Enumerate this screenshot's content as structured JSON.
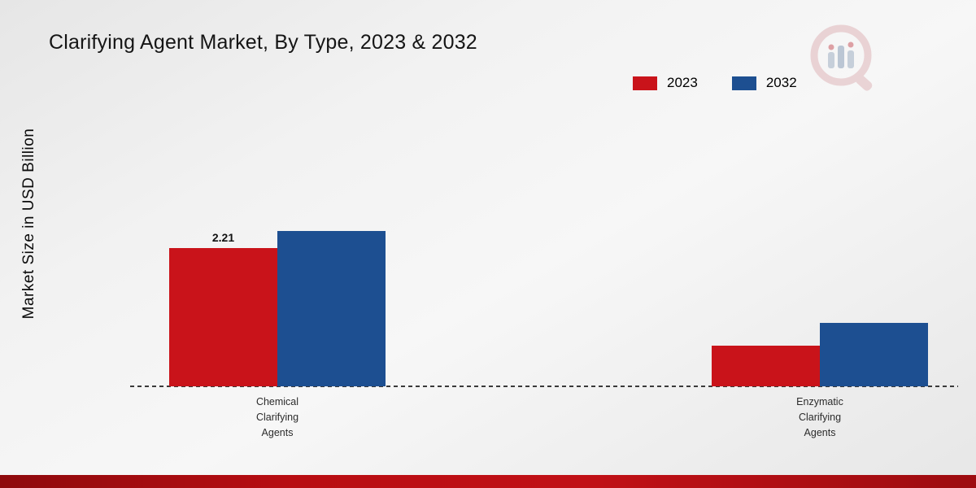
{
  "chart_data": {
    "type": "bar",
    "title": "Clarifying Agent Market, By Type, 2023 & 2032",
    "ylabel": "Market Size in USD Billion",
    "xlabel": "",
    "categories": [
      "Chemical Clarifying Agents",
      "Enzymatic Clarifying Agents"
    ],
    "series": [
      {
        "name": "2023",
        "color": "#c9131a",
        "values": [
          2.21,
          0.65
        ],
        "value_labels": [
          "2.21",
          null
        ]
      },
      {
        "name": "2032",
        "color": "#1d4f91",
        "values": [
          2.48,
          1.01
        ],
        "value_labels": [
          null,
          null
        ]
      }
    ],
    "ylim": [
      0,
      5
    ],
    "grid": false,
    "legend_position": "top-right",
    "baseline_style": "dashed"
  },
  "branding": {
    "logo_name": "magnifier-bar-chart-logo",
    "accent_bar_color": "#b80d12"
  }
}
